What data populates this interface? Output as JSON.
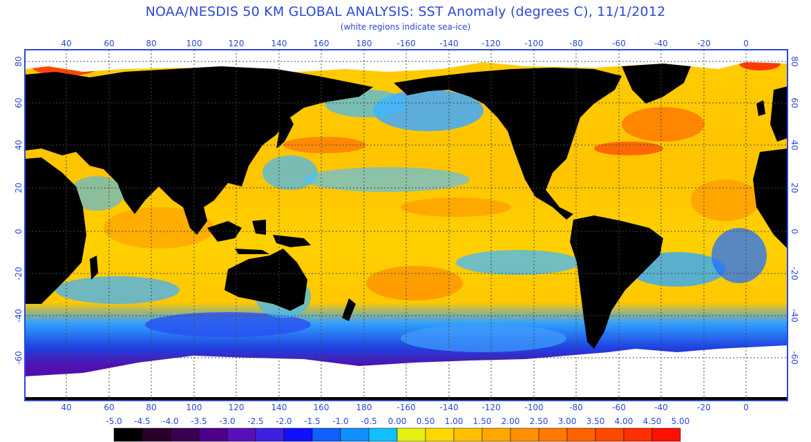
{
  "header": {
    "title": "NOAA/NESDIS 50 KM GLOBAL ANALYSIS: SST Anomaly (degrees C), 11/1/2012",
    "subtitle": "(white regions indicate sea-ice)"
  },
  "map": {
    "longitude_ticks": [
      "40",
      "60",
      "80",
      "100",
      "120",
      "140",
      "160",
      "180",
      "-160",
      "-140",
      "-120",
      "-100",
      "-80",
      "-60",
      "-40",
      "-20",
      "0"
    ],
    "latitude_ticks": [
      "80",
      "60",
      "40",
      "20",
      "0",
      "-20",
      "-40",
      "-60"
    ],
    "colors": {
      "frame": "#2b48d8",
      "land": "#000000",
      "sea_ice": "#ffffff",
      "grid": "#444444"
    }
  },
  "legend": {
    "labels": [
      "-5.0",
      "-4.5",
      "-4.0",
      "-3.5",
      "-3.0",
      "-2.5",
      "-2.0",
      "-1.5",
      "-1.0",
      "-0.5",
      "0.00",
      "0.50",
      "1.00",
      "1.50",
      "2.00",
      "2.50",
      "3.00",
      "3.50",
      "4.00",
      "4.50",
      "5.00"
    ],
    "colors": [
      "#000000",
      "#2a002a",
      "#3a0050",
      "#4c008a",
      "#5a10b8",
      "#4020e0",
      "#1010ff",
      "#1060ff",
      "#1090ff",
      "#10c0ff",
      "#e8f010",
      "#ffd800",
      "#ffc000",
      "#ffa800",
      "#ff9000",
      "#ff7800",
      "#ff6000",
      "#ff4800",
      "#ff3000",
      "#ff1000"
    ]
  }
}
